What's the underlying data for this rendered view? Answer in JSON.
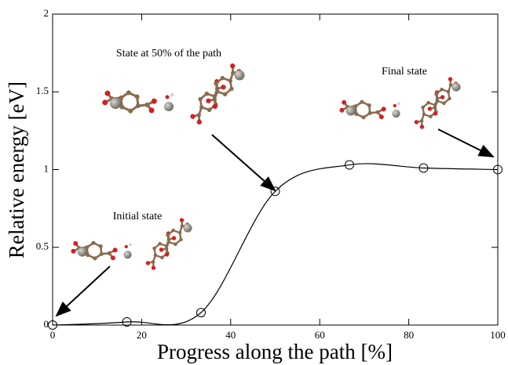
{
  "chart_data": {
    "type": "line",
    "x_label": "Progress along the path [%]",
    "y_label": "Relative energy [eV]",
    "annotations": [
      "State at 50% of the path",
      "Final state",
      "Initial state"
    ],
    "series": [
      {
        "x": [
          0,
          16.67,
          33.33,
          50,
          66.67,
          83.33,
          100
        ],
        "values": [
          0,
          0.02,
          0.08,
          0.86,
          1.03,
          1.01,
          1.0
        ],
        "color": "#000000"
      }
    ],
    "xlim": [
      0,
      100
    ],
    "xticks": [
      0,
      20,
      40,
      60,
      80,
      100
    ],
    "ylim": [
      0,
      2
    ],
    "yticks": [
      0,
      0.5,
      1,
      1.5,
      2
    ]
  }
}
